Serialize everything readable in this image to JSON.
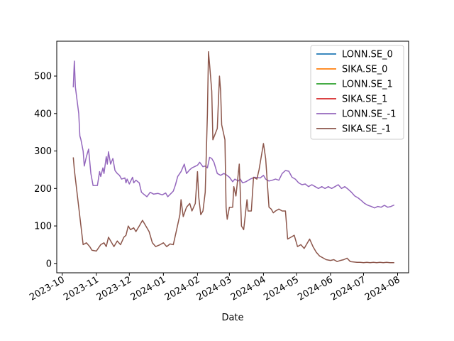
{
  "chart_data": {
    "type": "line",
    "title": "",
    "xlabel": "Date",
    "ylabel": "",
    "x_type": "date",
    "xlim": [
      "2023-09-26",
      "2024-08-11"
    ],
    "ylim": [
      -25,
      593
    ],
    "grid": false,
    "legend_position": "top-right",
    "x_ticks": [
      {
        "date": "2023-10-01",
        "label": "2023-10"
      },
      {
        "date": "2023-11-01",
        "label": "2023-11"
      },
      {
        "date": "2023-12-01",
        "label": "2023-12"
      },
      {
        "date": "2024-01-01",
        "label": "2024-01"
      },
      {
        "date": "2024-02-01",
        "label": "2024-02"
      },
      {
        "date": "2024-03-01",
        "label": "2024-03"
      },
      {
        "date": "2024-04-01",
        "label": "2024-04"
      },
      {
        "date": "2024-05-01",
        "label": "2024-05"
      },
      {
        "date": "2024-06-01",
        "label": "2024-06"
      },
      {
        "date": "2024-07-01",
        "label": "2024-07"
      },
      {
        "date": "2024-08-01",
        "label": "2024-08"
      }
    ],
    "y_ticks": [
      0,
      100,
      200,
      300,
      400,
      500
    ],
    "series": [
      {
        "name": "LONN.SE_0",
        "color": "#1f77b4",
        "points": []
      },
      {
        "name": "SIKA.SE_0",
        "color": "#ff7f0e",
        "points": []
      },
      {
        "name": "LONN.SE_1",
        "color": "#2ca02c",
        "points": []
      },
      {
        "name": "SIKA.SE_1",
        "color": "#d62728",
        "points": []
      },
      {
        "name": "LONN.SE_-1",
        "color": "#9467bd",
        "points": [
          [
            "2023-10-11",
            470
          ],
          [
            "2023-10-12",
            540
          ],
          [
            "2023-10-13",
            470
          ],
          [
            "2023-10-16",
            400
          ],
          [
            "2023-10-17",
            340
          ],
          [
            "2023-10-18",
            330
          ],
          [
            "2023-10-20",
            300
          ],
          [
            "2023-10-21",
            260
          ],
          [
            "2023-10-23",
            285
          ],
          [
            "2023-10-25",
            305
          ],
          [
            "2023-10-27",
            240
          ],
          [
            "2023-10-29",
            208
          ],
          [
            "2023-11-02",
            208
          ],
          [
            "2023-11-04",
            245
          ],
          [
            "2023-11-05",
            232
          ],
          [
            "2023-11-07",
            255
          ],
          [
            "2023-11-08",
            240
          ],
          [
            "2023-11-10",
            285
          ],
          [
            "2023-11-11",
            265
          ],
          [
            "2023-11-12",
            298
          ],
          [
            "2023-11-14",
            265
          ],
          [
            "2023-11-16",
            280
          ],
          [
            "2023-11-18",
            248
          ],
          [
            "2023-11-20",
            240
          ],
          [
            "2023-11-22",
            235
          ],
          [
            "2023-11-24",
            225
          ],
          [
            "2023-11-27",
            228
          ],
          [
            "2023-11-28",
            215
          ],
          [
            "2023-11-29",
            225
          ],
          [
            "2023-12-01",
            212
          ],
          [
            "2023-12-04",
            230
          ],
          [
            "2023-12-05",
            215
          ],
          [
            "2023-12-07",
            222
          ],
          [
            "2023-12-10",
            215
          ],
          [
            "2023-12-12",
            190
          ],
          [
            "2023-12-14",
            185
          ],
          [
            "2023-12-17",
            178
          ],
          [
            "2023-12-20",
            190
          ],
          [
            "2023-12-23",
            185
          ],
          [
            "2023-12-27",
            187
          ],
          [
            "2023-12-31",
            183
          ],
          [
            "2024-01-03",
            188
          ],
          [
            "2024-01-05",
            178
          ],
          [
            "2024-01-08",
            187
          ],
          [
            "2024-01-10",
            193
          ],
          [
            "2024-01-12",
            210
          ],
          [
            "2024-01-14",
            232
          ],
          [
            "2024-01-17",
            245
          ],
          [
            "2024-01-20",
            265
          ],
          [
            "2024-01-22",
            240
          ],
          [
            "2024-01-25",
            250
          ],
          [
            "2024-01-27",
            255
          ],
          [
            "2024-02-01",
            262
          ],
          [
            "2024-02-03",
            270
          ],
          [
            "2024-02-06",
            258
          ],
          [
            "2024-02-08",
            260
          ],
          [
            "2024-02-10",
            255
          ],
          [
            "2024-02-12",
            283
          ],
          [
            "2024-02-14",
            280
          ],
          [
            "2024-02-16",
            270
          ],
          [
            "2024-02-19",
            240
          ],
          [
            "2024-02-22",
            235
          ],
          [
            "2024-02-25",
            240
          ],
          [
            "2024-02-27",
            237
          ],
          [
            "2024-03-01",
            230
          ],
          [
            "2024-03-04",
            218
          ],
          [
            "2024-03-06",
            225
          ],
          [
            "2024-03-09",
            220
          ],
          [
            "2024-03-11",
            225
          ],
          [
            "2024-03-13",
            215
          ],
          [
            "2024-03-16",
            218
          ],
          [
            "2024-03-20",
            225
          ],
          [
            "2024-03-24",
            230
          ],
          [
            "2024-03-29",
            228
          ],
          [
            "2024-04-01",
            235
          ],
          [
            "2024-04-03",
            225
          ],
          [
            "2024-04-06",
            220
          ],
          [
            "2024-04-09",
            222
          ],
          [
            "2024-04-12",
            225
          ],
          [
            "2024-04-15",
            222
          ],
          [
            "2024-04-18",
            240
          ],
          [
            "2024-04-21",
            248
          ],
          [
            "2024-04-24",
            246
          ],
          [
            "2024-04-27",
            230
          ],
          [
            "2024-04-30",
            225
          ],
          [
            "2024-05-03",
            215
          ],
          [
            "2024-05-06",
            210
          ],
          [
            "2024-05-09",
            212
          ],
          [
            "2024-05-12",
            205
          ],
          [
            "2024-05-15",
            210
          ],
          [
            "2024-05-18",
            205
          ],
          [
            "2024-05-21",
            200
          ],
          [
            "2024-05-24",
            205
          ],
          [
            "2024-05-27",
            200
          ],
          [
            "2024-05-30",
            205
          ],
          [
            "2024-06-02",
            200
          ],
          [
            "2024-06-05",
            205
          ],
          [
            "2024-06-08",
            210
          ],
          [
            "2024-06-11",
            200
          ],
          [
            "2024-06-14",
            205
          ],
          [
            "2024-06-17",
            198
          ],
          [
            "2024-06-20",
            190
          ],
          [
            "2024-06-23",
            180
          ],
          [
            "2024-06-26",
            175
          ],
          [
            "2024-06-29",
            168
          ],
          [
            "2024-07-02",
            160
          ],
          [
            "2024-07-05",
            155
          ],
          [
            "2024-07-08",
            152
          ],
          [
            "2024-07-11",
            148
          ],
          [
            "2024-07-14",
            152
          ],
          [
            "2024-07-17",
            150
          ],
          [
            "2024-07-20",
            155
          ],
          [
            "2024-07-23",
            150
          ],
          [
            "2024-07-26",
            152
          ],
          [
            "2024-07-29",
            156
          ]
        ]
      },
      {
        "name": "SIKA.SE_-1",
        "color": "#8c564b",
        "points": [
          [
            "2023-10-11",
            283
          ],
          [
            "2023-10-12",
            250
          ],
          [
            "2023-10-14",
            200
          ],
          [
            "2023-10-16",
            150
          ],
          [
            "2023-10-18",
            100
          ],
          [
            "2023-10-20",
            50
          ],
          [
            "2023-10-23",
            55
          ],
          [
            "2023-10-26",
            45
          ],
          [
            "2023-10-28",
            35
          ],
          [
            "2023-11-01",
            33
          ],
          [
            "2023-11-05",
            50
          ],
          [
            "2023-11-08",
            55
          ],
          [
            "2023-11-10",
            45
          ],
          [
            "2023-11-12",
            70
          ],
          [
            "2023-11-15",
            55
          ],
          [
            "2023-11-17",
            45
          ],
          [
            "2023-11-20",
            60
          ],
          [
            "2023-11-23",
            50
          ],
          [
            "2023-11-26",
            70
          ],
          [
            "2023-11-28",
            75
          ],
          [
            "2023-11-30",
            100
          ],
          [
            "2023-12-02",
            90
          ],
          [
            "2023-12-05",
            95
          ],
          [
            "2023-12-07",
            85
          ],
          [
            "2023-12-10",
            100
          ],
          [
            "2023-12-13",
            115
          ],
          [
            "2023-12-16",
            100
          ],
          [
            "2023-12-19",
            85
          ],
          [
            "2023-12-22",
            55
          ],
          [
            "2023-12-25",
            45
          ],
          [
            "2023-12-29",
            50
          ],
          [
            "2024-01-01",
            55
          ],
          [
            "2024-01-04",
            45
          ],
          [
            "2024-01-07",
            52
          ],
          [
            "2024-01-10",
            50
          ],
          [
            "2024-01-13",
            90
          ],
          [
            "2024-01-16",
            130
          ],
          [
            "2024-01-17",
            170
          ],
          [
            "2024-01-19",
            125
          ],
          [
            "2024-01-22",
            150
          ],
          [
            "2024-01-25",
            160
          ],
          [
            "2024-01-27",
            140
          ],
          [
            "2024-01-30",
            160
          ],
          [
            "2024-02-01",
            245
          ],
          [
            "2024-02-02",
            180
          ],
          [
            "2024-02-04",
            130
          ],
          [
            "2024-02-06",
            140
          ],
          [
            "2024-02-08",
            190
          ],
          [
            "2024-02-10",
            400
          ],
          [
            "2024-02-11",
            565
          ],
          [
            "2024-02-12",
            530
          ],
          [
            "2024-02-14",
            460
          ],
          [
            "2024-02-15",
            330
          ],
          [
            "2024-02-17",
            345
          ],
          [
            "2024-02-19",
            360
          ],
          [
            "2024-02-21",
            500
          ],
          [
            "2024-02-22",
            460
          ],
          [
            "2024-02-23",
            370
          ],
          [
            "2024-02-26",
            330
          ],
          [
            "2024-02-27",
            150
          ],
          [
            "2024-02-28",
            118
          ],
          [
            "2024-03-01",
            150
          ],
          [
            "2024-03-04",
            150
          ],
          [
            "2024-03-05",
            205
          ],
          [
            "2024-03-07",
            180
          ],
          [
            "2024-03-10",
            265
          ],
          [
            "2024-03-12",
            100
          ],
          [
            "2024-03-14",
            90
          ],
          [
            "2024-03-17",
            170
          ],
          [
            "2024-03-18",
            140
          ],
          [
            "2024-03-21",
            140
          ],
          [
            "2024-03-23",
            230
          ],
          [
            "2024-03-26",
            225
          ],
          [
            "2024-03-28",
            250
          ],
          [
            "2024-04-01",
            320
          ],
          [
            "2024-04-03",
            280
          ],
          [
            "2024-04-06",
            150
          ],
          [
            "2024-04-08",
            145
          ],
          [
            "2024-04-10",
            135
          ],
          [
            "2024-04-12",
            140
          ],
          [
            "2024-04-15",
            145
          ],
          [
            "2024-04-18",
            140
          ],
          [
            "2024-04-21",
            140
          ],
          [
            "2024-04-23",
            65
          ],
          [
            "2024-04-26",
            70
          ],
          [
            "2024-04-29",
            75
          ],
          [
            "2024-05-02",
            45
          ],
          [
            "2024-05-05",
            50
          ],
          [
            "2024-05-08",
            40
          ],
          [
            "2024-05-11",
            55
          ],
          [
            "2024-05-13",
            65
          ],
          [
            "2024-05-16",
            45
          ],
          [
            "2024-05-19",
            30
          ],
          [
            "2024-05-22",
            20
          ],
          [
            "2024-05-25",
            15
          ],
          [
            "2024-05-28",
            10
          ],
          [
            "2024-06-01",
            8
          ],
          [
            "2024-06-04",
            10
          ],
          [
            "2024-06-07",
            5
          ],
          [
            "2024-06-10",
            8
          ],
          [
            "2024-06-13",
            10
          ],
          [
            "2024-06-16",
            14
          ],
          [
            "2024-06-19",
            5
          ],
          [
            "2024-06-22",
            4
          ],
          [
            "2024-06-25",
            3
          ],
          [
            "2024-06-28",
            3
          ],
          [
            "2024-07-01",
            2
          ],
          [
            "2024-07-04",
            3
          ],
          [
            "2024-07-07",
            2
          ],
          [
            "2024-07-10",
            3
          ],
          [
            "2024-07-13",
            2
          ],
          [
            "2024-07-16",
            3
          ],
          [
            "2024-07-19",
            2
          ],
          [
            "2024-07-22",
            3
          ],
          [
            "2024-07-25",
            2
          ],
          [
            "2024-07-29",
            2
          ]
        ]
      }
    ]
  }
}
